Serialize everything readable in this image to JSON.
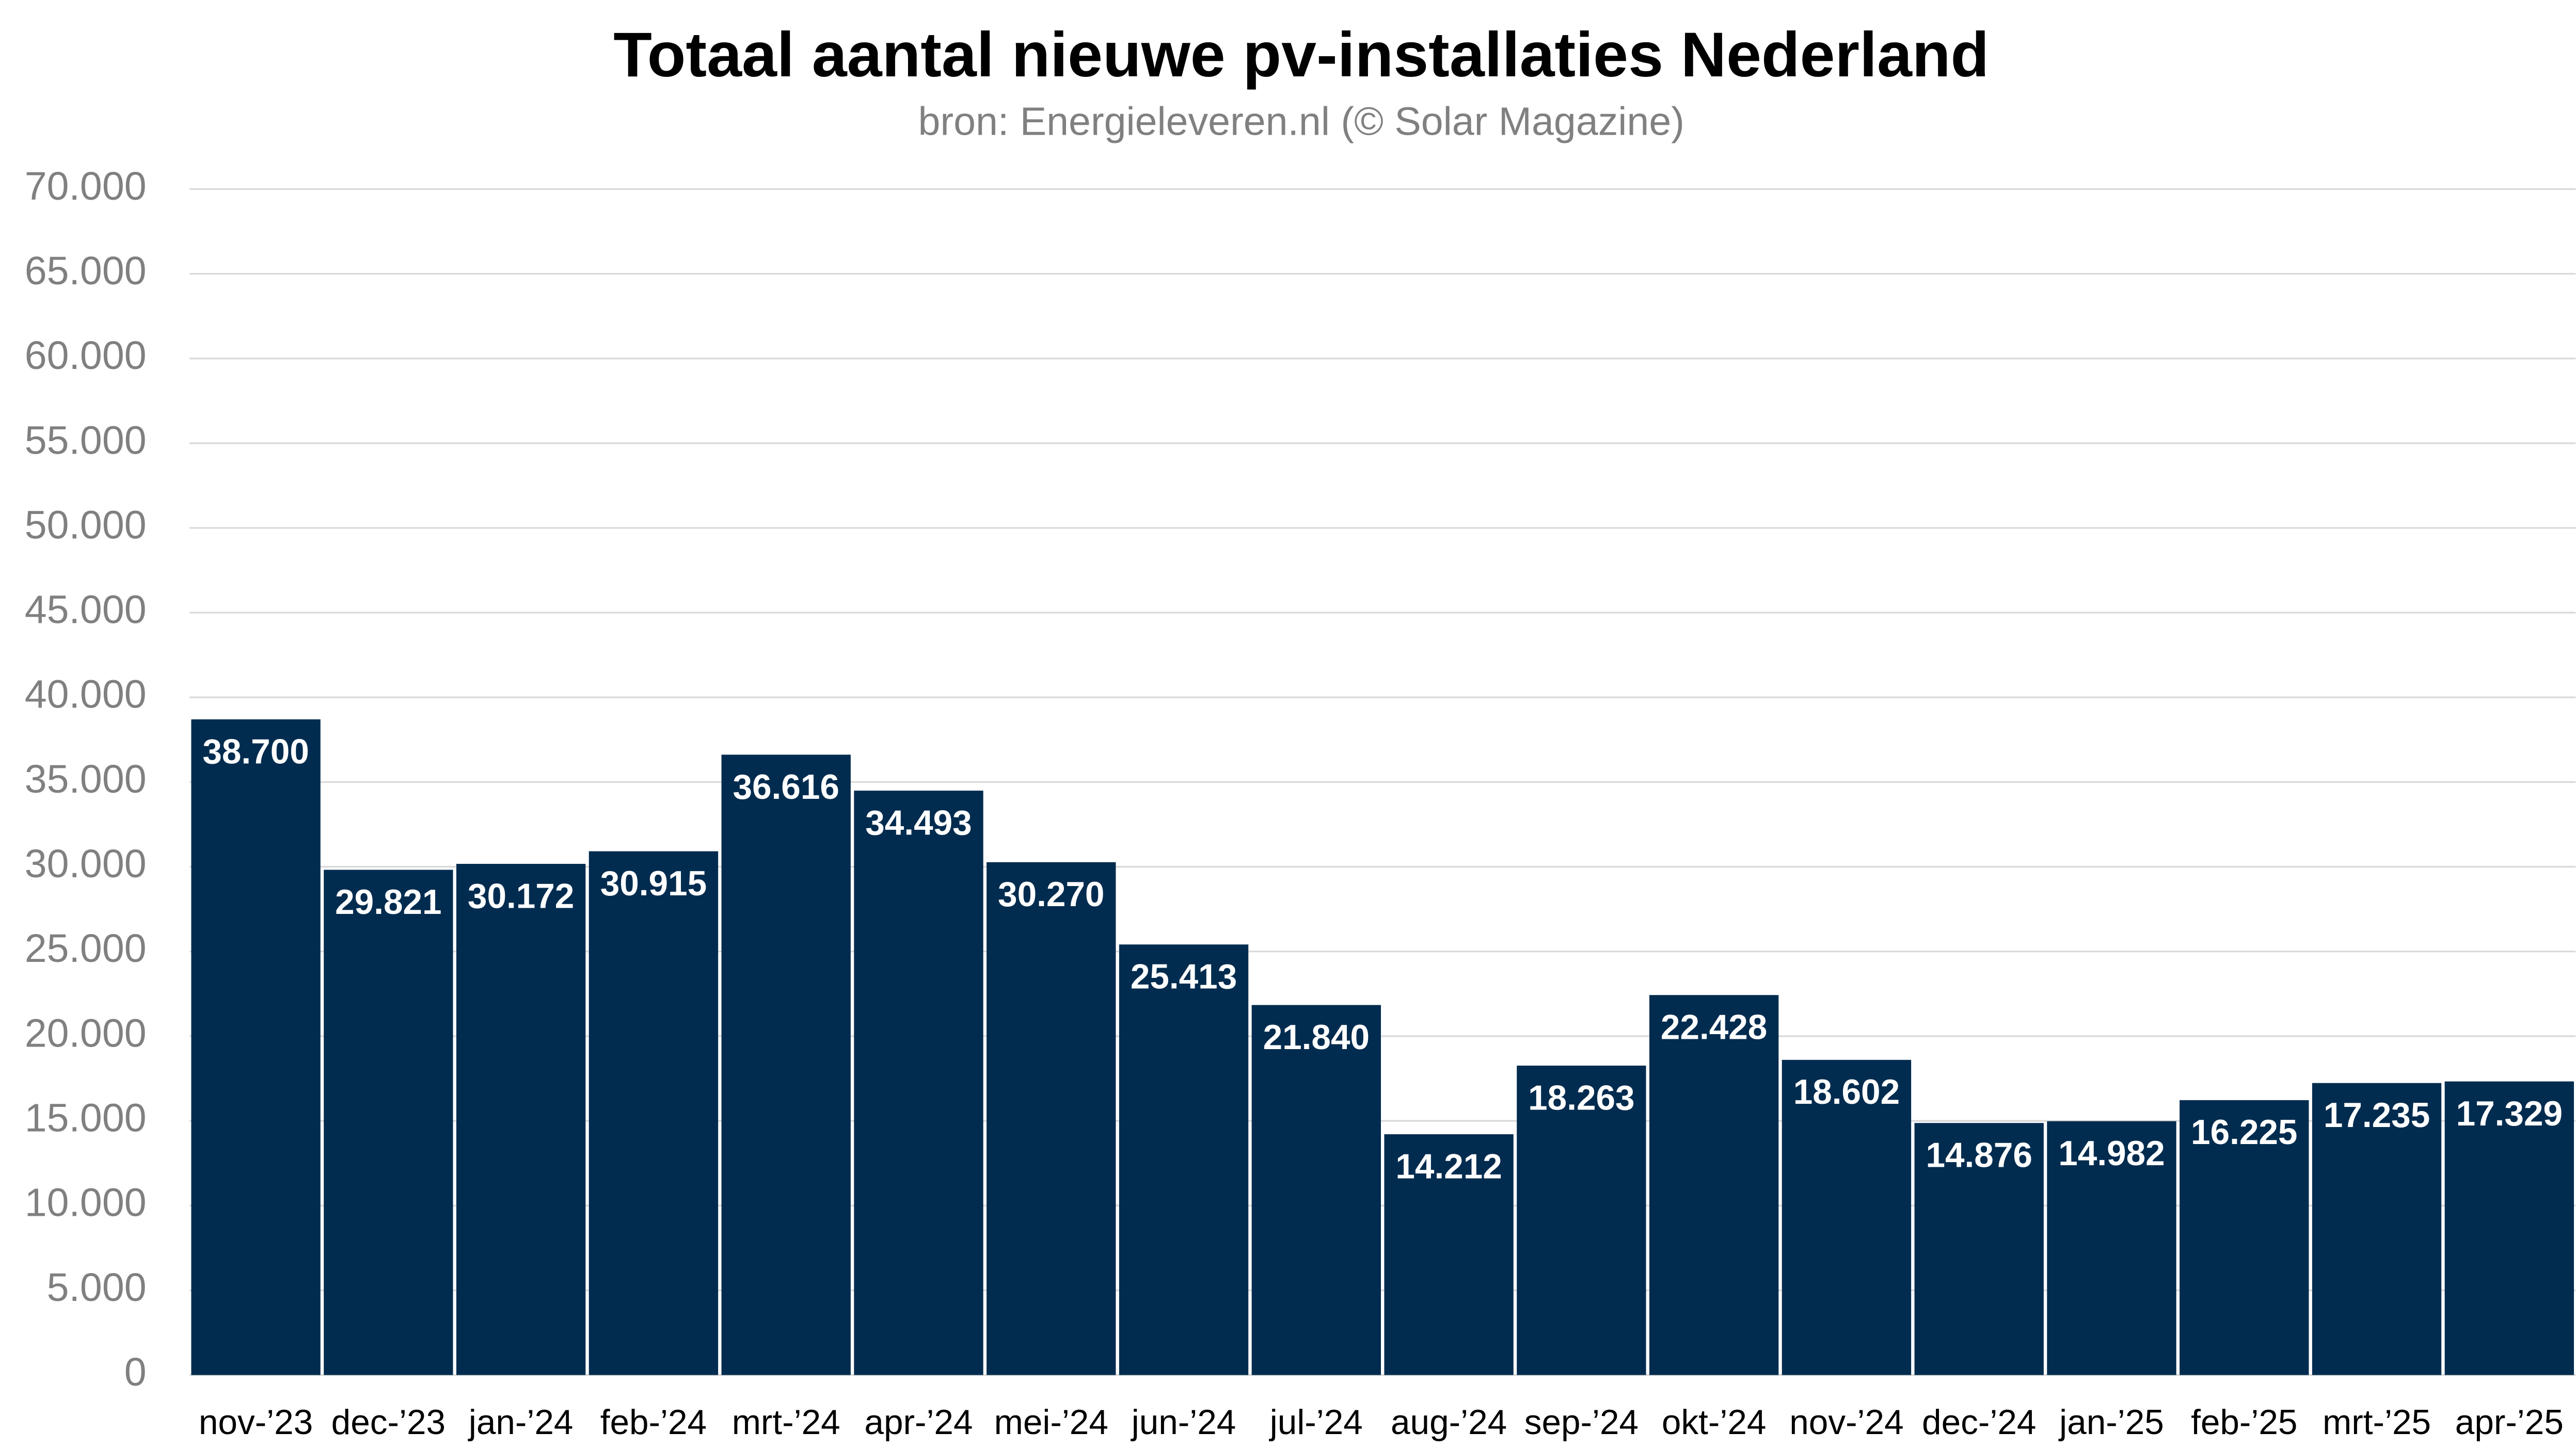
{
  "chart_data": {
    "type": "bar",
    "title": "Totaal aantal nieuwe pv-installaties Nederland",
    "subtitle": "bron: Energieleveren.nl (© Solar Magazine)",
    "categories": [
      "nov-’23",
      "dec-’23",
      "jan-’24",
      "feb-’24",
      "mrt-’24",
      "apr-’24",
      "mei-’24",
      "jun-’24",
      "jul-’24",
      "aug-’24",
      "sep-’24",
      "okt-’24",
      "nov-’24",
      "dec-’24",
      "jan-’25",
      "feb-’25",
      "mrt-’25",
      "apr-’25"
    ],
    "values": [
      38700,
      29821,
      30172,
      30915,
      36616,
      34493,
      30270,
      25413,
      21840,
      14212,
      18263,
      22428,
      18602,
      14876,
      14982,
      16225,
      17235,
      17329
    ],
    "value_labels": [
      "38.700",
      "29.821",
      "30.172",
      "30.915",
      "36.616",
      "34.493",
      "30.270",
      "25.413",
      "21.840",
      "14.212",
      "18.263",
      "22.428",
      "18.602",
      "14.876",
      "14.982",
      "16.225",
      "17.235",
      "17.329"
    ],
    "color": "#022c4f",
    "ylim": [
      0,
      70000
    ],
    "yticks": [
      0,
      {
        "value": 5000,
        "label": "5.000"
      },
      {
        "value": 10000,
        "label": "10.000"
      },
      {
        "value": 15000,
        "label": "15.000"
      },
      {
        "value": 20000,
        "label": "20.000"
      },
      {
        "value": 25000,
        "label": "25.000"
      },
      {
        "value": 30000,
        "label": "30.000"
      },
      {
        "value": 35000,
        "label": "35.000"
      },
      {
        "value": 40000,
        "label": "40.000"
      },
      {
        "value": 45000,
        "label": "45.000"
      },
      {
        "value": 50000,
        "label": "50.000"
      },
      {
        "value": 55000,
        "label": "55.000"
      },
      {
        "value": 60000,
        "label": "60.000"
      },
      {
        "value": 65000,
        "label": "65.000"
      },
      {
        "value": 70000,
        "label": "70.000"
      }
    ],
    "grid": true
  }
}
